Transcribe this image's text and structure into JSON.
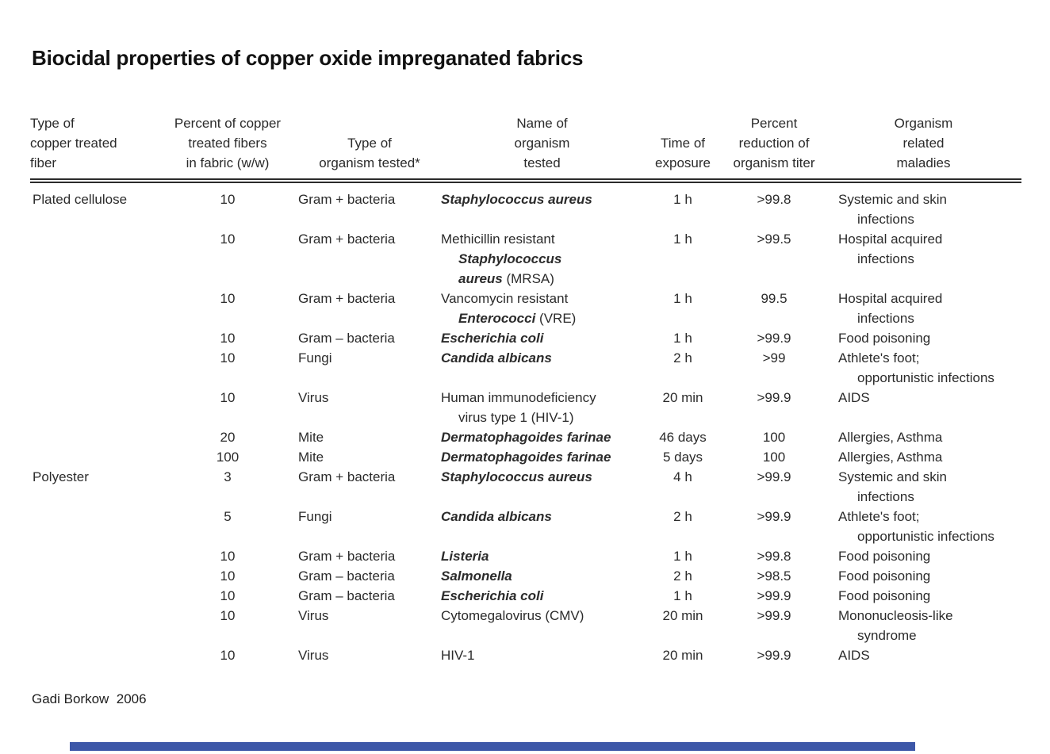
{
  "title": "Biocidal properties of copper oxide impreganated fabrics",
  "footer": {
    "credit": "Gadi Borkow  2006"
  },
  "accent_color": "#3d57a8",
  "table": {
    "columns": [
      {
        "id": "fiber",
        "align": "left",
        "label": [
          "Type of",
          "copper treated",
          "fiber"
        ]
      },
      {
        "id": "percent",
        "align": "center",
        "label": [
          "Percent of copper",
          "treated fibers",
          "in fabric (w/w)"
        ]
      },
      {
        "id": "organism-type",
        "align": "center",
        "label": [
          "Type of",
          "organism tested*"
        ]
      },
      {
        "id": "organism-name",
        "align": "center",
        "label": [
          "Name of",
          "organism",
          "tested"
        ]
      },
      {
        "id": "time",
        "align": "center",
        "label": [
          "Time of",
          "exposure"
        ]
      },
      {
        "id": "reduction",
        "align": "center",
        "label": [
          "Percent",
          "reduction of",
          "organism titer"
        ]
      },
      {
        "id": "maladies",
        "align": "center",
        "label": [
          "Organism",
          "related",
          "maladies"
        ]
      }
    ],
    "rows": [
      {
        "fiber": "Plated cellulose",
        "percent": "10",
        "organism_type": "Gram + bacteria",
        "organism_name": [
          [
            {
              "t": "Staphylococcus aureus",
              "i": 1
            }
          ]
        ],
        "time": "1 h",
        "reduction": ">99.8",
        "maladies": [
          "Systemic and skin",
          "infections"
        ]
      },
      {
        "fiber": "",
        "percent": "10",
        "organism_type": "Gram + bacteria",
        "organism_name": [
          [
            {
              "t": "Methicillin resistant"
            }
          ],
          [
            {
              "t": "Staphylococcus",
              "i": 1
            }
          ],
          [
            {
              "t": "aureus",
              "i": 1
            },
            {
              "t": " (MRSA)"
            }
          ]
        ],
        "time": "1 h",
        "reduction": ">99.5",
        "maladies": [
          "Hospital acquired",
          "infections"
        ]
      },
      {
        "fiber": "",
        "percent": "10",
        "organism_type": "Gram + bacteria",
        "organism_name": [
          [
            {
              "t": "Vancomycin resistant"
            }
          ],
          [
            {
              "t": "Enterococci",
              "i": 1
            },
            {
              "t": " (VRE)"
            }
          ]
        ],
        "time": "1 h",
        "reduction": "99.5",
        "maladies": [
          "Hospital acquired",
          "infections"
        ]
      },
      {
        "fiber": "",
        "percent": "10",
        "organism_type": "Gram – bacteria",
        "organism_name": [
          [
            {
              "t": "Escherichia coli",
              "i": 1
            }
          ]
        ],
        "time": "1 h",
        "reduction": ">99.9",
        "maladies": [
          "Food poisoning"
        ]
      },
      {
        "fiber": "",
        "percent": "10",
        "organism_type": "Fungi",
        "organism_name": [
          [
            {
              "t": "Candida albicans",
              "i": 1
            }
          ]
        ],
        "time": "2 h",
        "reduction": ">99",
        "maladies": [
          "Athlete's foot;",
          "opportunistic infections"
        ]
      },
      {
        "fiber": "",
        "percent": "10",
        "organism_type": "Virus",
        "organism_name": [
          [
            {
              "t": "Human immunodeficiency"
            }
          ],
          [
            {
              "t": "virus type 1 (HIV-1)"
            }
          ]
        ],
        "time": "20 min",
        "reduction": ">99.9",
        "maladies": [
          "AIDS"
        ]
      },
      {
        "fiber": "",
        "percent": "20",
        "organism_type": "Mite",
        "organism_name": [
          [
            {
              "t": "Dermatophagoides farinae",
              "i": 1
            }
          ]
        ],
        "time": "46 days",
        "reduction": "100",
        "maladies": [
          "Allergies, Asthma"
        ]
      },
      {
        "fiber": "",
        "percent": "100",
        "organism_type": "Mite",
        "organism_name": [
          [
            {
              "t": "Dermatophagoides farinae",
              "i": 1
            }
          ]
        ],
        "time": "5 days",
        "reduction": "100",
        "maladies": [
          "Allergies, Asthma"
        ]
      },
      {
        "fiber": "Polyester",
        "percent": "3",
        "organism_type": "Gram + bacteria",
        "organism_name": [
          [
            {
              "t": "Staphylococcus aureus",
              "i": 1
            }
          ]
        ],
        "time": "4 h",
        "reduction": ">99.9",
        "maladies": [
          "Systemic and skin",
          "infections"
        ]
      },
      {
        "fiber": "",
        "percent": "5",
        "organism_type": "Fungi",
        "organism_name": [
          [
            {
              "t": "Candida albicans",
              "i": 1
            }
          ]
        ],
        "time": "2 h",
        "reduction": ">99.9",
        "maladies": [
          "Athlete's foot;",
          "opportunistic infections"
        ]
      },
      {
        "fiber": "",
        "percent": "10",
        "organism_type": "Gram + bacteria",
        "organism_name": [
          [
            {
              "t": "Listeria",
              "i": 1
            }
          ]
        ],
        "time": "1 h",
        "reduction": ">99.8",
        "maladies": [
          "Food poisoning"
        ]
      },
      {
        "fiber": "",
        "percent": "10",
        "organism_type": "Gram – bacteria",
        "organism_name": [
          [
            {
              "t": "Salmonella",
              "i": 1
            }
          ]
        ],
        "time": "2 h",
        "reduction": ">98.5",
        "maladies": [
          "Food poisoning"
        ]
      },
      {
        "fiber": "",
        "percent": "10",
        "organism_type": "Gram – bacteria",
        "organism_name": [
          [
            {
              "t": "Escherichia coli",
              "i": 1
            }
          ]
        ],
        "time": "1 h",
        "reduction": ">99.9",
        "maladies": [
          "Food poisoning"
        ]
      },
      {
        "fiber": "",
        "percent": "10",
        "organism_type": "Virus",
        "organism_name": [
          [
            {
              "t": "Cytomegalovirus (CMV)"
            }
          ]
        ],
        "time": "20 min",
        "reduction": ">99.9",
        "maladies": [
          "Mononucleosis-like",
          "syndrome"
        ]
      },
      {
        "fiber": "",
        "percent": "10",
        "organism_type": "Virus",
        "organism_name": [
          [
            {
              "t": "HIV-1"
            }
          ]
        ],
        "time": "20 min",
        "reduction": ">99.9",
        "maladies": [
          "AIDS"
        ]
      }
    ]
  }
}
